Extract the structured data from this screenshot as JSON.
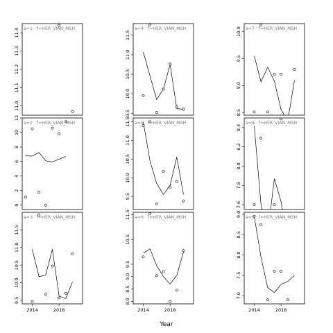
{
  "figure": {
    "xlabel": "Year"
  },
  "chart_data": [
    {
      "type": "scatter",
      "strip_label": "a=1  :  f=HER_VIAN_MSH",
      "xlim": [
        2012.5,
        2021.5
      ],
      "ylim": [
        10.95,
        11.45
      ],
      "yticks": [
        11.0,
        11.1,
        11.2,
        11.3,
        11.4
      ],
      "ytick_labels": [
        "11.0",
        "11.1",
        "11.2",
        "11.3",
        "11.4"
      ],
      "xticks": [],
      "xtick_labels": [],
      "points": [
        {
          "x": 2018,
          "y": 11.44
        },
        {
          "x": 2020,
          "y": 10.97
        }
      ],
      "line": []
    },
    {
      "type": "scatter",
      "strip_label": "a=4  :  f=HER_VIAN_MSH",
      "xlim": [
        2012.5,
        2021.5
      ],
      "ylim": [
        9.45,
        11.8
      ],
      "yticks": [
        9.5,
        10.0,
        10.5,
        11.0,
        11.5
      ],
      "ytick_labels": [
        "9.5",
        "10.0",
        "10.5",
        "11.0",
        "11.5"
      ],
      "xticks": [],
      "xtick_labels": [],
      "points": [
        {
          "x": 2014,
          "y": 9.95
        },
        {
          "x": 2015,
          "y": 11.76
        },
        {
          "x": 2016,
          "y": 9.52
        },
        {
          "x": 2017,
          "y": 10.12
        },
        {
          "x": 2018,
          "y": 10.76
        },
        {
          "x": 2019,
          "y": 9.66
        },
        {
          "x": 2020,
          "y": 9.6
        }
      ],
      "line": [
        {
          "x": 2014,
          "y": 11.07
        },
        {
          "x": 2016,
          "y": 9.85
        },
        {
          "x": 2017,
          "y": 10.12
        },
        {
          "x": 2018,
          "y": 10.75
        },
        {
          "x": 2019,
          "y": 9.62
        },
        {
          "x": 2020,
          "y": 9.6
        }
      ]
    },
    {
      "type": "scatter",
      "strip_label": "a=7  :  f=HER_VIAN_MSH",
      "xlim": [
        2012.5,
        2021.5
      ],
      "ylim": [
        8.45,
        10.15
      ],
      "yticks": [
        8.5,
        9.0,
        9.5,
        10.0
      ],
      "ytick_labels": [
        "8.5",
        "9.0",
        "9.5",
        "10.0"
      ],
      "xticks": [],
      "xtick_labels": [],
      "points": [
        {
          "x": 2014,
          "y": 8.51
        },
        {
          "x": 2015,
          "y": 10.12
        },
        {
          "x": 2016,
          "y": 8.51
        },
        {
          "x": 2017,
          "y": 9.21
        },
        {
          "x": 2018,
          "y": 9.21
        },
        {
          "x": 2020,
          "y": 9.3
        }
      ],
      "line": [
        {
          "x": 2014,
          "y": 9.55
        },
        {
          "x": 2015,
          "y": 9.07
        },
        {
          "x": 2016,
          "y": 9.34
        },
        {
          "x": 2017,
          "y": 9.08
        },
        {
          "x": 2018,
          "y": 8.55
        },
        {
          "x": 2019,
          "y": 8.35
        },
        {
          "x": 2020,
          "y": 9.1
        }
      ]
    },
    {
      "type": "scatter",
      "strip_label": "a=2  :  f=HER_VIAN_MSH",
      "xlim": [
        2012.5,
        2021.5
      ],
      "ylim": [
        -0.6,
        12.0
      ],
      "yticks": [
        0,
        2,
        4,
        6,
        8,
        10,
        12
      ],
      "ytick_labels": [
        "0",
        "2",
        "4",
        "6",
        "8",
        "10",
        "12"
      ],
      "xticks": [],
      "xtick_labels": [],
      "points": [
        {
          "x": 2013,
          "y": 1.1
        },
        {
          "x": 2014,
          "y": 10.5
        },
        {
          "x": 2015,
          "y": 1.8
        },
        {
          "x": 2016,
          "y": 0
        },
        {
          "x": 2017,
          "y": 10.6
        },
        {
          "x": 2018,
          "y": 9.8
        },
        {
          "x": 2019,
          "y": 11.5
        }
      ],
      "line": [
        {
          "x": 2013,
          "y": 6.8
        },
        {
          "x": 2014,
          "y": 6.75
        },
        {
          "x": 2015,
          "y": 7.25
        },
        {
          "x": 2016,
          "y": 6.1
        },
        {
          "x": 2017,
          "y": 5.95
        },
        {
          "x": 2019,
          "y": 6.7
        }
      ]
    },
    {
      "type": "scatter",
      "strip_label": "a=5  :  f=HER_VIAN_MSH",
      "xlim": [
        2012.5,
        2021.5
      ],
      "ylim": [
        9.15,
        11.6
      ],
      "yticks": [
        9.5,
        10.0,
        10.5,
        11.0,
        11.5
      ],
      "ytick_labels": [
        "9.5",
        "10.0",
        "10.5",
        "11.0",
        "11.5"
      ],
      "xticks": [],
      "xtick_labels": [],
      "points": [
        {
          "x": 2014,
          "y": 11.4
        },
        {
          "x": 2015,
          "y": 11.5
        },
        {
          "x": 2016,
          "y": 9.3
        },
        {
          "x": 2017,
          "y": 10.17
        },
        {
          "x": 2018,
          "y": 9.75
        },
        {
          "x": 2019,
          "y": 9.9
        },
        {
          "x": 2020,
          "y": 9.38
        }
      ],
      "line": [
        {
          "x": 2014,
          "y": 11.5
        },
        {
          "x": 2015,
          "y": 10.45
        },
        {
          "x": 2016,
          "y": 9.85
        },
        {
          "x": 2017,
          "y": 9.55
        },
        {
          "x": 2018,
          "y": 9.8
        },
        {
          "x": 2019,
          "y": 10.55
        },
        {
          "x": 2020,
          "y": 9.55
        }
      ]
    },
    {
      "type": "scatter",
      "strip_label": "a=8  :  f=HER_VIAN_MSH",
      "xlim": [
        2012.5,
        2021.5
      ],
      "ylim": [
        7.55,
        8.5
      ],
      "yticks": [
        7.6,
        7.8,
        8.0,
        8.2,
        8.4
      ],
      "ytick_labels": [
        "7.6",
        "7.8",
        "8.0",
        "8.2",
        "8.4"
      ],
      "xticks": [],
      "xtick_labels": [],
      "points": [
        {
          "x": 2014,
          "y": 7.6
        },
        {
          "x": 2015,
          "y": 8.29
        },
        {
          "x": 2017,
          "y": 7.6
        },
        {
          "x": 2018,
          "y": 8.49
        }
      ],
      "line": [
        {
          "x": 2014,
          "y": 8.42
        },
        {
          "x": 2015,
          "y": 7.6
        },
        {
          "x": 2016,
          "y": 7.3
        },
        {
          "x": 2017,
          "y": 7.87
        },
        {
          "x": 2018,
          "y": 7.63
        },
        {
          "x": 2019,
          "y": 7.2
        }
      ]
    },
    {
      "type": "scatter",
      "strip_label": "a=3  :  f=HER_VIAN_MSH",
      "xlim": [
        2012.5,
        2021.5
      ],
      "ylim": [
        9.4,
        12.0
      ],
      "yticks": [
        9.5,
        10.0,
        10.5,
        11.0,
        11.5
      ],
      "ytick_labels": [
        "9.5",
        "10.0",
        "10.5",
        "11.0",
        "11.5"
      ],
      "xticks": [
        2014,
        2018
      ],
      "xtick_labels": [
        "2014",
        "2018"
      ],
      "points": [
        {
          "x": 2014,
          "y": 9.47
        },
        {
          "x": 2015,
          "y": 11.92
        },
        {
          "x": 2016,
          "y": 9.67
        },
        {
          "x": 2017,
          "y": 10.47
        },
        {
          "x": 2018,
          "y": 9.57
        },
        {
          "x": 2019,
          "y": 9.7
        },
        {
          "x": 2020,
          "y": 10.82
        }
      ],
      "line": [
        {
          "x": 2014,
          "y": 10.95
        },
        {
          "x": 2015,
          "y": 10.17
        },
        {
          "x": 2016,
          "y": 10.22
        },
        {
          "x": 2017,
          "y": 10.95
        },
        {
          "x": 2018,
          "y": 9.62
        },
        {
          "x": 2019,
          "y": 9.55
        },
        {
          "x": 2020,
          "y": 10.02
        }
      ]
    },
    {
      "type": "scatter",
      "strip_label": "a=6  :  f=HER_VIAN_MSH",
      "xlim": [
        2012.5,
        2021.5
      ],
      "ylim": [
        7.9,
        11.6
      ],
      "yticks": [
        8.0,
        8.5,
        9.0,
        9.5,
        10.5,
        11.5
      ],
      "ytick_labels": [
        "8.0",
        "8.5",
        "9.0",
        "9.5",
        "10.5",
        "11.5"
      ],
      "xticks": [
        2014,
        2018
      ],
      "xtick_labels": [
        "2014",
        "2018"
      ],
      "points": [
        {
          "x": 2014,
          "y": 9.8
        },
        {
          "x": 2015,
          "y": 11.55
        },
        {
          "x": 2016,
          "y": 9.04
        },
        {
          "x": 2017,
          "y": 9.2
        },
        {
          "x": 2018,
          "y": 8.0
        },
        {
          "x": 2019,
          "y": 8.45
        },
        {
          "x": 2020,
          "y": 10.05
        }
      ],
      "line": [
        {
          "x": 2014,
          "y": 9.95
        },
        {
          "x": 2015,
          "y": 10.12
        },
        {
          "x": 2016,
          "y": 9.45
        },
        {
          "x": 2017,
          "y": 9.0
        },
        {
          "x": 2018,
          "y": 8.7
        },
        {
          "x": 2019,
          "y": 9.05
        },
        {
          "x": 2020,
          "y": 10.0
        }
      ]
    },
    {
      "type": "scatter",
      "strip_label": "a=9  :  f=HER_VIAN_MSH",
      "xlim": [
        2012.5,
        2021.5
      ],
      "ylim": [
        6.8,
        9.05
      ],
      "yticks": [
        7.0,
        7.5,
        8.0,
        8.5,
        9.0
      ],
      "ytick_labels": [
        "7.0",
        "7.5",
        "8.0",
        "8.5",
        "9.0"
      ],
      "xticks": [
        2014,
        2018
      ],
      "xtick_labels": [
        "2014",
        "2018"
      ],
      "points": [
        {
          "x": 2014,
          "y": 8.95
        },
        {
          "x": 2015,
          "y": 8.75
        },
        {
          "x": 2016,
          "y": 6.9
        },
        {
          "x": 2017,
          "y": 7.6
        },
        {
          "x": 2018,
          "y": 7.6
        },
        {
          "x": 2019,
          "y": 6.9
        }
      ],
      "line": [
        {
          "x": 2014,
          "y": 8.95
        },
        {
          "x": 2015,
          "y": 7.95
        },
        {
          "x": 2016,
          "y": 7.2
        },
        {
          "x": 2017,
          "y": 7.08
        },
        {
          "x": 2018,
          "y": 7.28
        },
        {
          "x": 2019,
          "y": 7.35
        },
        {
          "x": 2020,
          "y": 7.5
        }
      ]
    }
  ]
}
